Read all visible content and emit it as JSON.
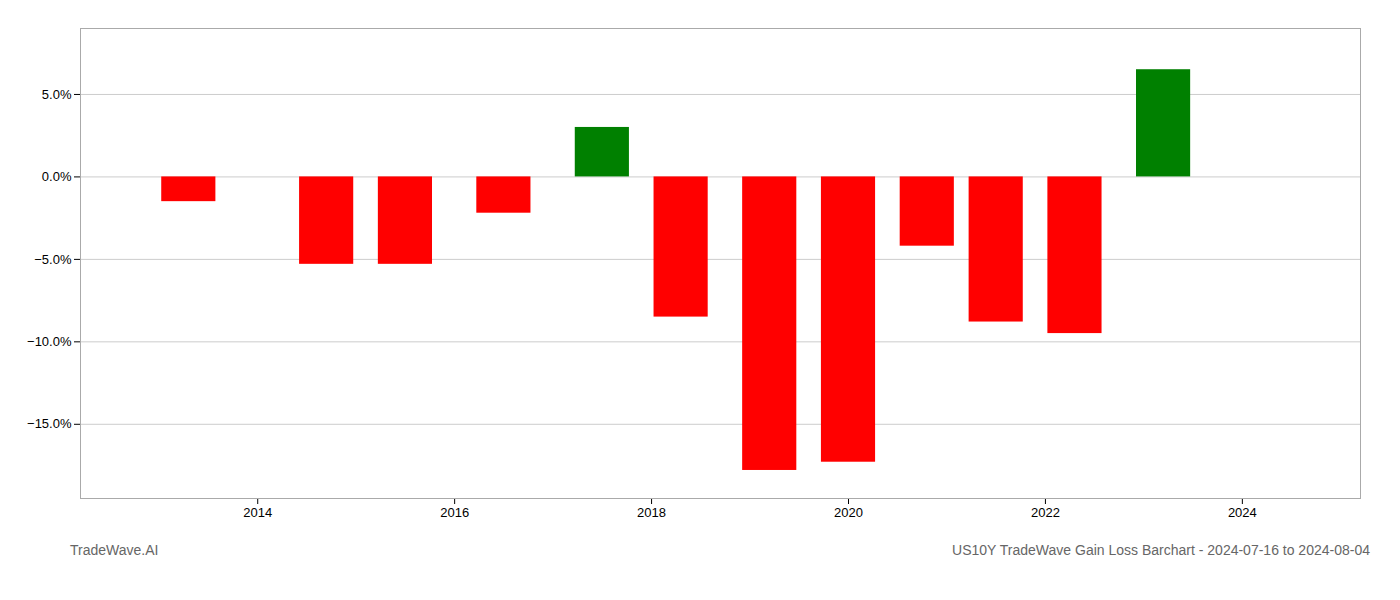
{
  "chart_data": {
    "type": "bar",
    "title": "US10Y TradeWave Gain Loss Barchart - 2024-07-16 to 2024-08-04",
    "annotations": [
      "TradeWave.AI"
    ],
    "x": [
      2013.3,
      2014.7,
      2015.5,
      2016.5,
      2017.5,
      2018.3,
      2019.2,
      2020.0,
      2020.8,
      2021.5,
      2022.3,
      2023.2
    ],
    "values": [
      -1.5,
      -5.3,
      -5.3,
      -2.2,
      3.0,
      -8.5,
      -17.8,
      -17.3,
      -4.2,
      -8.8,
      -9.5,
      6.5
    ],
    "colors": [
      "#ff0000",
      "#ff0000",
      "#ff0000",
      "#ff0000",
      "#008000",
      "#ff0000",
      "#ff0000",
      "#ff0000",
      "#ff0000",
      "#ff0000",
      "#ff0000",
      "#008000"
    ],
    "xlim": [
      2012.2,
      2025.2
    ],
    "xticks": [
      2014,
      2016,
      2018,
      2020,
      2022,
      2024
    ],
    "ylim": [
      -19.5,
      9.0
    ],
    "yticks": [
      {
        "value": 5.0,
        "label": "5.0%"
      },
      {
        "value": 0.0,
        "label": "0.0%"
      },
      {
        "value": -5.0,
        "label": "−5.0%"
      },
      {
        "value": -10.0,
        "label": "−10.0%"
      },
      {
        "value": -15.0,
        "label": "−15.0%"
      }
    ],
    "grid": true
  }
}
